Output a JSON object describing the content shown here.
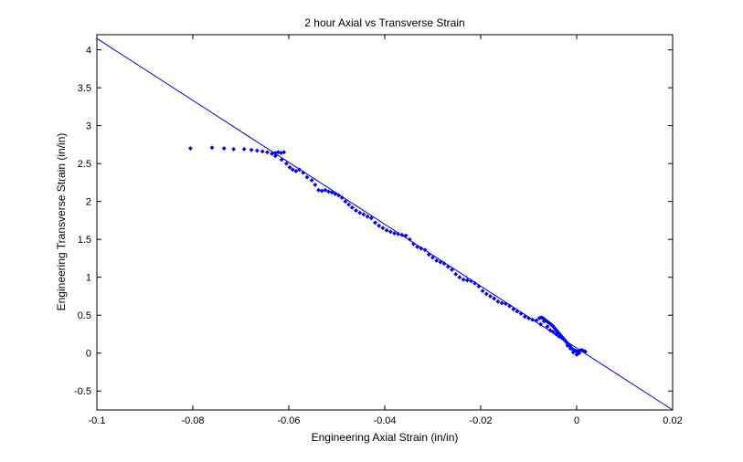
{
  "chart_data": {
    "type": "scatter",
    "title": "2 hour Axial vs Transverse Strain",
    "xlabel": "Engineering Axial Strain (in/in)",
    "ylabel": "Engineering Transverse Strain (in/in)",
    "xlim": [
      -0.1,
      0.02
    ],
    "ylim": [
      -0.75,
      4.2
    ],
    "xticks": [
      -0.1,
      -0.08,
      -0.06,
      -0.04,
      -0.02,
      0,
      0.02
    ],
    "xtick_labels": [
      "-0.1",
      "-0.08",
      "-0.06",
      "-0.04",
      "-0.02",
      "0",
      "0.02"
    ],
    "yticks": [
      -0.5,
      0,
      0.5,
      1,
      1.5,
      2,
      2.5,
      3,
      3.5,
      4
    ],
    "ytick_labels": [
      "-0.5",
      "0",
      "0.5",
      "1",
      "1.5",
      "2",
      "2.5",
      "3",
      "3.5",
      "4"
    ],
    "grid": false,
    "color": "#0000ff",
    "fit_line": {
      "x": [
        -0.1,
        0.02
      ],
      "y": [
        4.15,
        -0.75
      ]
    },
    "series": [
      {
        "x": [
          -0.0805,
          -0.076,
          -0.0735,
          -0.0715,
          -0.0693,
          -0.0678,
          -0.0666,
          -0.0655,
          -0.0645,
          -0.0635,
          -0.0628,
          -0.0622,
          -0.0616,
          -0.061,
          -0.0628,
          -0.0615,
          -0.0605,
          -0.0598,
          -0.0592,
          -0.0585,
          -0.0578,
          -0.057,
          -0.0562,
          -0.0552,
          -0.0545,
          -0.0538,
          -0.0531,
          -0.0524,
          -0.0517,
          -0.051,
          -0.0503,
          -0.0496,
          -0.0489,
          -0.0482,
          -0.0475,
          -0.0468,
          -0.046,
          -0.0452,
          -0.0444,
          -0.0436,
          -0.0428,
          -0.042,
          -0.0412,
          -0.0404,
          -0.0396,
          -0.0388,
          -0.038,
          -0.0372,
          -0.0364,
          -0.0356,
          -0.0348,
          -0.034,
          -0.0332,
          -0.0324,
          -0.0316,
          -0.0308,
          -0.03,
          -0.0292,
          -0.0284,
          -0.0276,
          -0.0268,
          -0.026,
          -0.0252,
          -0.0244,
          -0.0236,
          -0.0228,
          -0.022,
          -0.0212,
          -0.0204,
          -0.0196,
          -0.0188,
          -0.018,
          -0.0172,
          -0.0164,
          -0.0156,
          -0.0148,
          -0.014,
          -0.0132,
          -0.0124,
          -0.0116,
          -0.0108,
          -0.01,
          -0.0092,
          -0.0084,
          -0.0078,
          -0.0074,
          -0.007,
          -0.0066,
          -0.0062,
          -0.0058,
          -0.0054,
          -0.005,
          -0.0046,
          -0.0042,
          -0.0038,
          -0.0034,
          -0.003,
          -0.0026,
          -0.0022,
          -0.0018,
          -0.0014,
          -0.001,
          -0.0006,
          -0.0002,
          0.0002,
          0.0006,
          0.001,
          0.0014,
          0.0018,
          -0.0075,
          -0.0068,
          -0.0061,
          -0.0055,
          -0.0049,
          -0.0043,
          -0.0037,
          -0.0031,
          -0.0025,
          -0.0019,
          -0.0013,
          -0.0007,
          0.0,
          0.0005
        ],
        "y": [
          2.7,
          2.71,
          2.7,
          2.69,
          2.69,
          2.68,
          2.67,
          2.66,
          2.65,
          2.63,
          2.64,
          2.65,
          2.64,
          2.65,
          2.6,
          2.55,
          2.5,
          2.45,
          2.42,
          2.4,
          2.42,
          2.38,
          2.32,
          2.28,
          2.22,
          2.15,
          2.14,
          2.15,
          2.13,
          2.12,
          2.1,
          2.08,
          2.05,
          2.0,
          1.96,
          1.92,
          1.88,
          1.85,
          1.83,
          1.8,
          1.78,
          1.72,
          1.68,
          1.65,
          1.62,
          1.6,
          1.58,
          1.57,
          1.56,
          1.55,
          1.5,
          1.44,
          1.4,
          1.38,
          1.36,
          1.3,
          1.26,
          1.22,
          1.2,
          1.18,
          1.14,
          1.1,
          1.04,
          1.0,
          0.97,
          0.96,
          0.95,
          0.92,
          0.88,
          0.82,
          0.78,
          0.75,
          0.72,
          0.68,
          0.66,
          0.65,
          0.62,
          0.58,
          0.55,
          0.52,
          0.48,
          0.46,
          0.44,
          0.43,
          0.46,
          0.47,
          0.46,
          0.44,
          0.42,
          0.4,
          0.38,
          0.36,
          0.33,
          0.3,
          0.27,
          0.24,
          0.21,
          0.18,
          0.15,
          0.12,
          0.09,
          0.06,
          0.04,
          0.03,
          0.02,
          0.03,
          0.04,
          0.03,
          0.02,
          0.38,
          0.42,
          0.35,
          0.3,
          0.28,
          0.25,
          0.22,
          0.2,
          0.17,
          0.1,
          0.06,
          0.01,
          -0.02,
          0.0
        ]
      }
    ]
  }
}
